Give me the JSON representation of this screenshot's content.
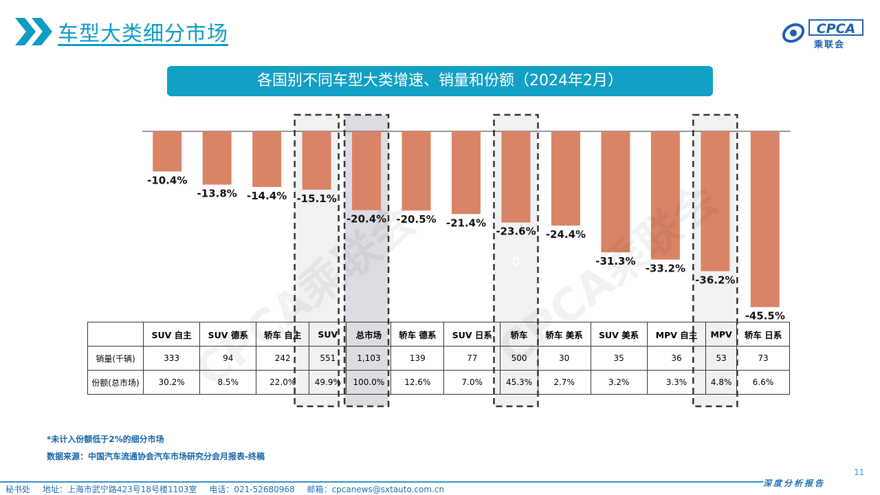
{
  "header": {
    "title": "车型大类细分市场",
    "logo_text": "CPCA",
    "logo_cn": "乘联会"
  },
  "banner": {
    "title": "各国别不同车型大类增速、销量和份额（2024年2月）"
  },
  "watermark": "CPCA乘联会",
  "colors": {
    "bar": "#d98466",
    "accent": "#12a0c4",
    "highlight": "#f1f1f1",
    "highlight_dark": "#dcdce2"
  },
  "chart_data": {
    "type": "bar",
    "title": "各国别不同车型大类增速、销量和份额（2024年2月）",
    "categories": [
      "SUV 自主",
      "SUV 德系",
      "轿车 自主",
      "SUV",
      "总市场",
      "轿车 德系",
      "SUV 日系",
      "轿车",
      "轿车 美系",
      "SUV 美系",
      "MPV 自主",
      "MPV",
      "轿车 日系"
    ],
    "values": [
      -10.4,
      -13.8,
      -14.4,
      -15.1,
      -20.4,
      -20.5,
      -21.4,
      -23.6,
      -24.4,
      -31.3,
      -33.2,
      -36.2,
      -45.5
    ],
    "labels": [
      "-10.4%",
      "-13.8%",
      "-14.4%",
      "-15.1%",
      "-20.4%",
      "-20.5%",
      "-21.4%",
      "-23.6%",
      "-24.4%",
      "-31.3%",
      "-33.2%",
      "-36.2%",
      "-45.5%"
    ],
    "unit": "%",
    "ylim": [
      -50,
      0
    ],
    "highlighted": [
      "SUV",
      "总市场",
      "轿车",
      "MPV"
    ],
    "stray_label": "0"
  },
  "table": {
    "headers": [
      "SUV 自主",
      "SUV 德系",
      "轿车 自主",
      "SUV",
      "总市场",
      "轿车 德系",
      "SUV 日系",
      "轿车",
      "轿车 美系",
      "SUV 美系",
      "MPV 自主",
      "MPV",
      "轿车 日系"
    ],
    "rows": [
      {
        "label": "销量(千辆)",
        "cells": [
          "333",
          "94",
          "242",
          "551",
          "1,103",
          "139",
          "77",
          "500",
          "30",
          "35",
          "36",
          "53",
          "73"
        ]
      },
      {
        "label": "份额(总市场)",
        "cells": [
          "30.2%",
          "8.5%",
          "22.0%",
          "49.9%",
          "100.0%",
          "12.6%",
          "7.0%",
          "45.3%",
          "2.7%",
          "3.2%",
          "3.3%",
          "4.8%",
          "6.6%"
        ]
      }
    ]
  },
  "notes": {
    "note1": "*未计入份额低于2%的细分市场",
    "note2": "数据来源：中国汽车流通协会汽车市场研究分会月报表-终稿"
  },
  "footer": {
    "office": "秘书处",
    "address": "地址：上海市武宁路423号18号楼1103室",
    "phone": "电话：021-52680968",
    "email": "邮箱：cpcanews@sxtauto.com.cn",
    "tagline": "深度分析报告",
    "page_number": "11"
  }
}
